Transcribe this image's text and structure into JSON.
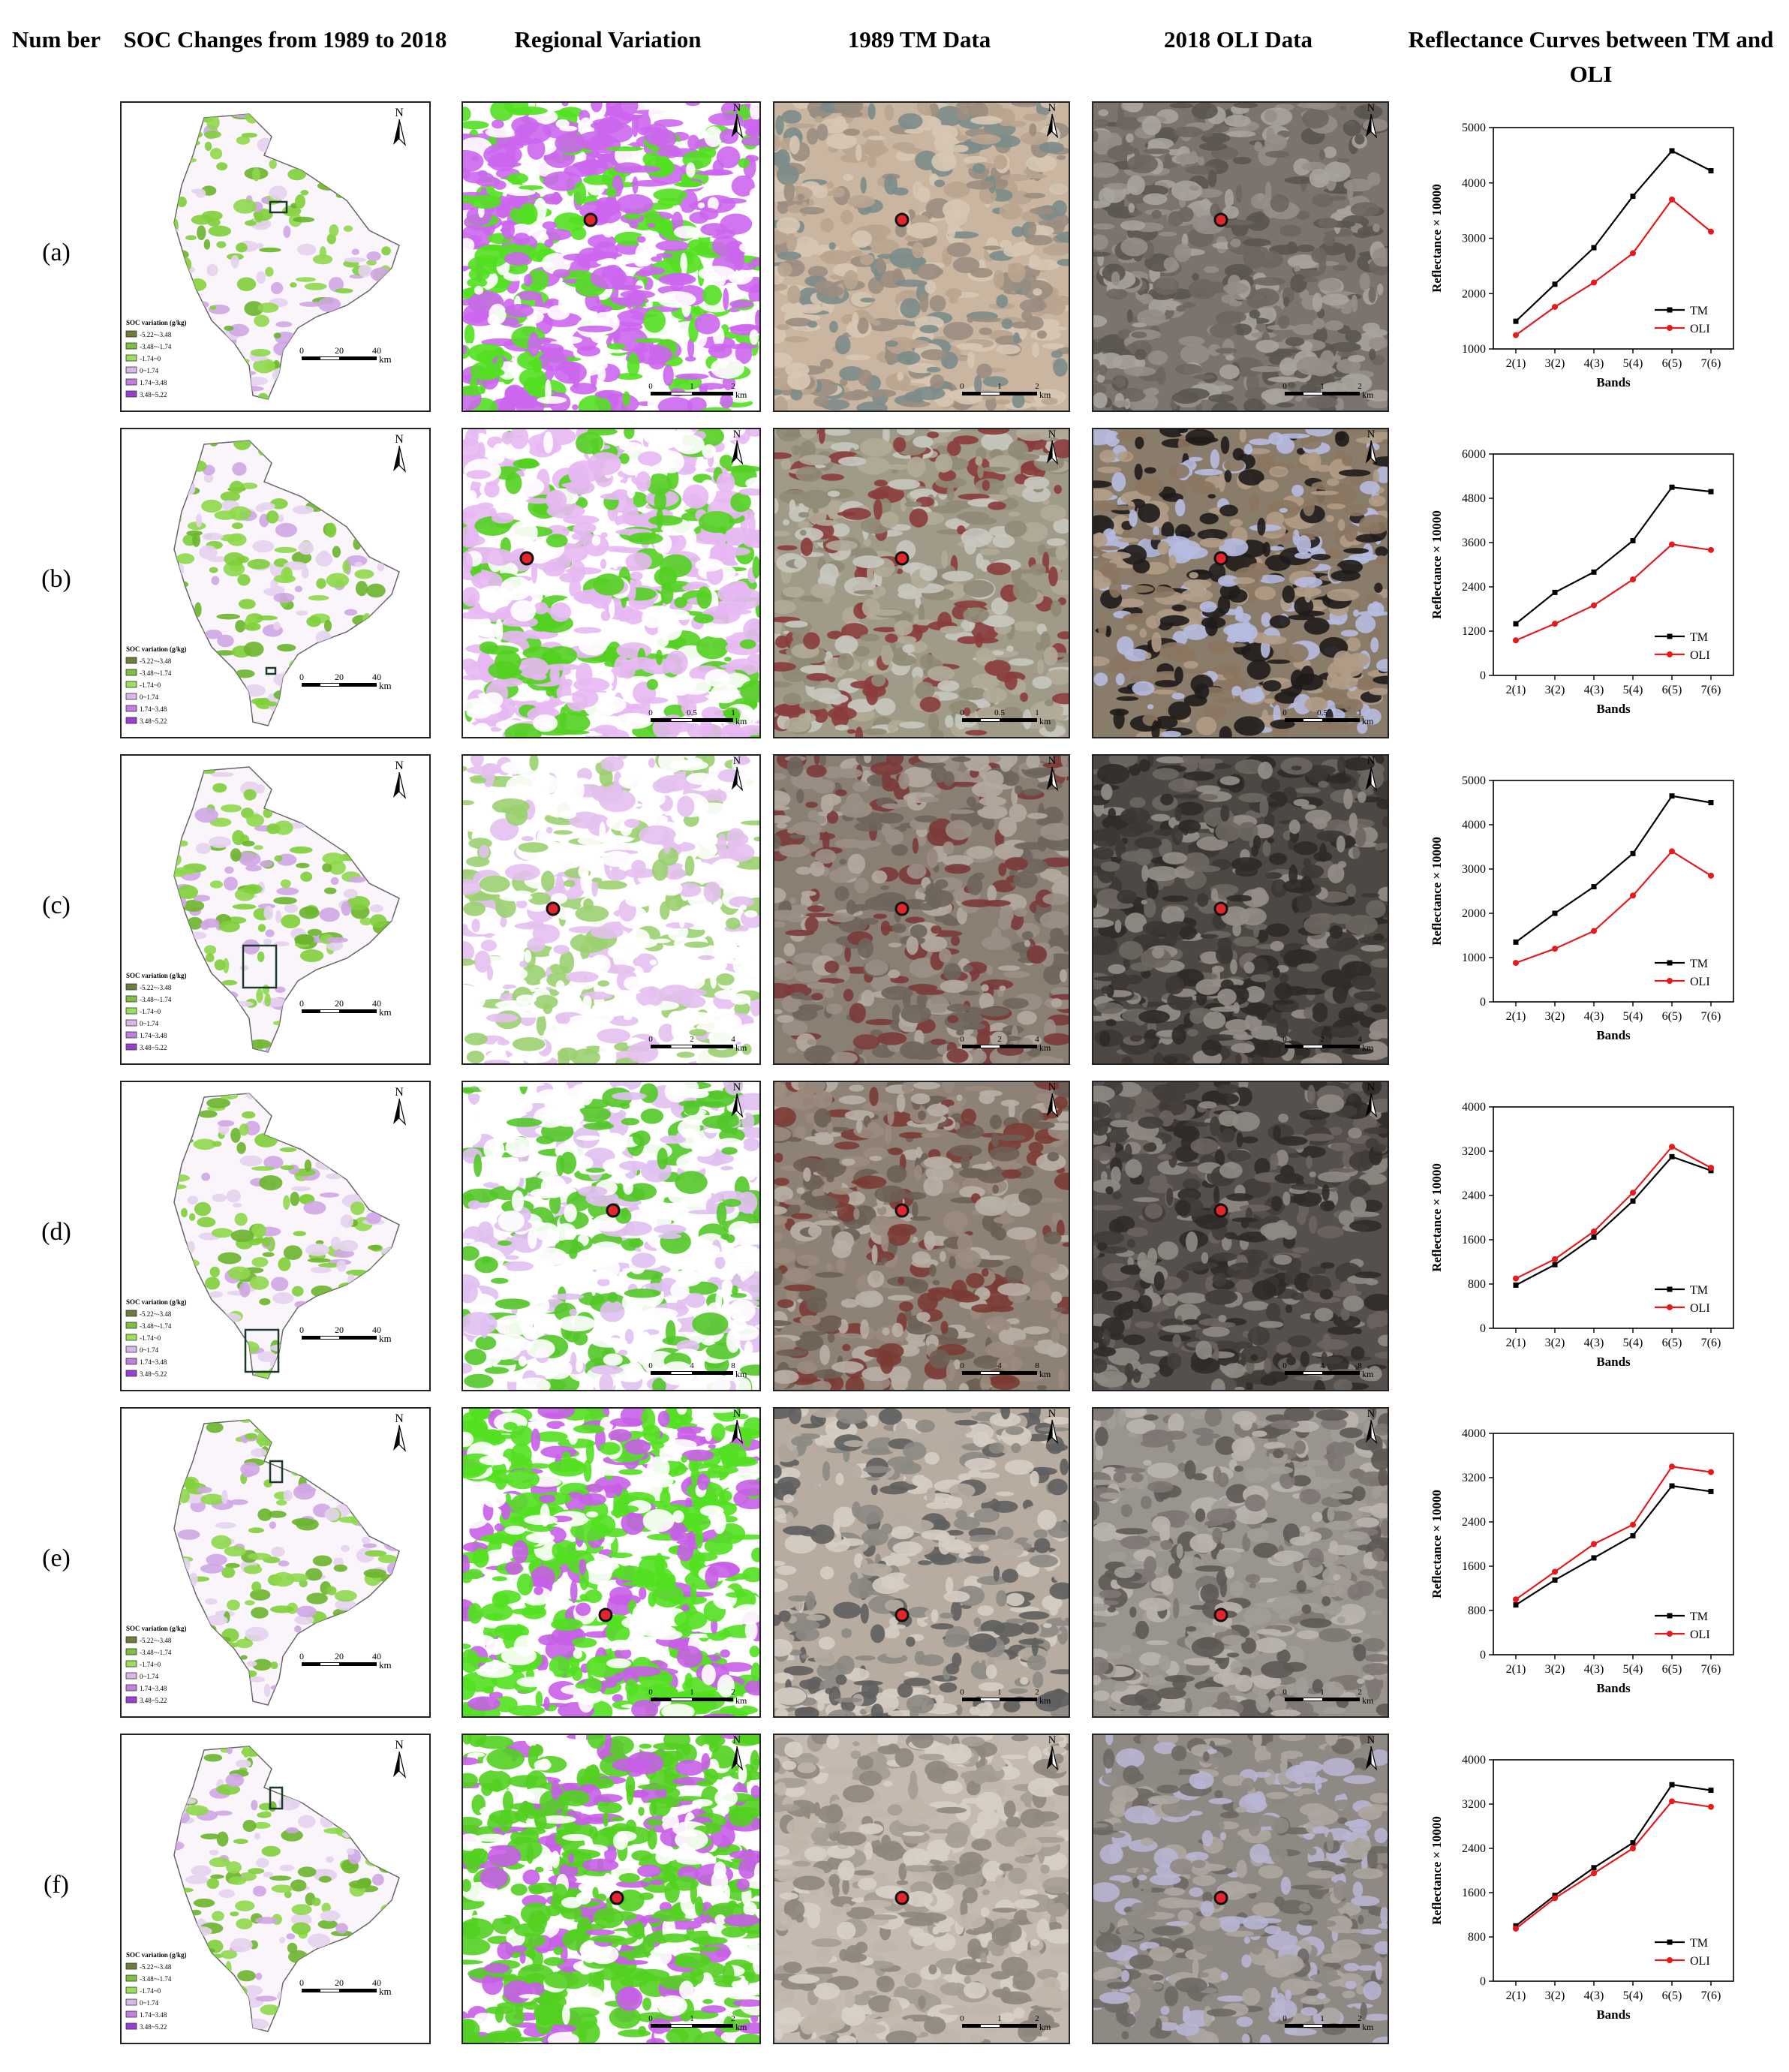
{
  "headers": {
    "number": "Num ber",
    "soc": "SOC Changes from 1989 to 2018",
    "regional": "Regional Variation",
    "tm": "1989 TM Data",
    "oli": "2018 OLI Data",
    "curves": "Reflectance Curves between TM and OLI"
  },
  "rows": [
    {
      "label": "(a)",
      "letter": "a"
    },
    {
      "label": "(b)",
      "letter": "b"
    },
    {
      "label": "(c)",
      "letter": "c"
    },
    {
      "label": "(d)",
      "letter": "d"
    },
    {
      "label": "(e)",
      "letter": "e"
    },
    {
      "label": "(f)",
      "letter": "f"
    }
  ],
  "map_common": {
    "north_label": "N",
    "km_label": "km",
    "scale_ticks": [
      "0",
      "20",
      "40"
    ],
    "legend_title_a": "SOC variation (g/kg)",
    "legend_title": "SOC variation (g/kg)",
    "legend_items": [
      "-5.22~-3.48",
      "-3.48~-1.74",
      "-1.74~0",
      "0~1.74",
      "1.74~3.48",
      "3.48~5.22"
    ],
    "legend_colors": [
      "#6a7f3a",
      "#7fbf3f",
      "#9be05a",
      "#d8b8e8",
      "#c27ee0",
      "#9b3fd0"
    ]
  },
  "chart_data": [
    {
      "type": "line",
      "row": "a",
      "categories": [
        "2(1)",
        "3(2)",
        "4(3)",
        "5(4)",
        "6(5)",
        "7(6)"
      ],
      "series": [
        {
          "name": "TM",
          "color": "#000000",
          "values": [
            1500,
            2170,
            2830,
            3760,
            4580,
            4220
          ]
        },
        {
          "name": "OLI",
          "color": "#e41a1c",
          "values": [
            1250,
            1760,
            2200,
            2730,
            3700,
            3120
          ]
        }
      ],
      "xlabel": "Bands",
      "ylabel": "Reflectance × 10000",
      "ylim": [
        1000,
        5000
      ],
      "yticks": [
        "1000",
        "2000",
        "3000",
        "4000",
        "5000"
      ],
      "legend": "bottom-right"
    },
    {
      "type": "line",
      "row": "b",
      "categories": [
        "2(1)",
        "3(2)",
        "4(3)",
        "5(4)",
        "6(5)",
        "7(6)"
      ],
      "series": [
        {
          "name": "TM",
          "color": "#000000",
          "values": [
            1400,
            2250,
            2800,
            3650,
            5100,
            4980
          ]
        },
        {
          "name": "OLI",
          "color": "#e41a1c",
          "values": [
            950,
            1400,
            1900,
            2600,
            3550,
            3400
          ]
        }
      ],
      "xlabel": "Bands",
      "ylabel": "Reflectance × 10000",
      "ylim": [
        0,
        6000
      ],
      "yticks": [
        "0",
        "1200",
        "2400",
        "3600",
        "4800",
        "6000"
      ],
      "legend": "bottom-right"
    },
    {
      "type": "line",
      "row": "c",
      "categories": [
        "2(1)",
        "3(2)",
        "4(3)",
        "5(4)",
        "6(5)",
        "7(6)"
      ],
      "series": [
        {
          "name": "TM",
          "color": "#000000",
          "values": [
            1350,
            2000,
            2600,
            3350,
            4650,
            4500
          ]
        },
        {
          "name": "OLI",
          "color": "#e41a1c",
          "values": [
            880,
            1200,
            1600,
            2400,
            3400,
            2850
          ]
        }
      ],
      "xlabel": "Bands",
      "ylabel": "Reflectance × 10000",
      "ylim": [
        0,
        5000
      ],
      "yticks": [
        "0",
        "1000",
        "2000",
        "3000",
        "4000",
        "5000"
      ],
      "legend": "bottom-right"
    },
    {
      "type": "line",
      "row": "d",
      "categories": [
        "2(1)",
        "3(2)",
        "4(3)",
        "5(4)",
        "6(5)",
        "7(6)"
      ],
      "series": [
        {
          "name": "TM",
          "color": "#000000",
          "values": [
            780,
            1150,
            1650,
            2300,
            3100,
            2850
          ]
        },
        {
          "name": "OLI",
          "color": "#e41a1c",
          "values": [
            900,
            1250,
            1750,
            2450,
            3280,
            2900
          ]
        }
      ],
      "xlabel": "Bands",
      "ylabel": "Reflectance × 10000",
      "ylim": [
        0,
        4000
      ],
      "yticks": [
        "0",
        "800",
        "1600",
        "2400",
        "3200",
        "4000"
      ],
      "legend": "bottom-right"
    },
    {
      "type": "line",
      "row": "e",
      "categories": [
        "2(1)",
        "3(2)",
        "4(3)",
        "5(4)",
        "6(5)",
        "7(6)"
      ],
      "series": [
        {
          "name": "TM",
          "color": "#000000",
          "values": [
            900,
            1350,
            1750,
            2150,
            3050,
            2950
          ]
        },
        {
          "name": "OLI",
          "color": "#e41a1c",
          "values": [
            1000,
            1500,
            2000,
            2350,
            3400,
            3300
          ]
        }
      ],
      "xlabel": "Bands",
      "ylabel": "Reflectance × 10000",
      "ylim": [
        0,
        4000
      ],
      "yticks": [
        "0",
        "800",
        "1600",
        "2400",
        "3200",
        "4000"
      ],
      "legend": "bottom-right"
    },
    {
      "type": "line",
      "row": "f",
      "categories": [
        "2(1)",
        "3(2)",
        "4(3)",
        "5(4)",
        "6(5)",
        "7(6)"
      ],
      "series": [
        {
          "name": "TM",
          "color": "#000000",
          "values": [
            1000,
            1550,
            2050,
            2500,
            3550,
            3450
          ]
        },
        {
          "name": "OLI",
          "color": "#e41a1c",
          "values": [
            950,
            1500,
            1950,
            2400,
            3250,
            3150
          ]
        }
      ],
      "xlabel": "Bands",
      "ylabel": "Reflectance × 10000",
      "ylim": [
        0,
        4000
      ],
      "yticks": [
        "0",
        "800",
        "1600",
        "2400",
        "3200",
        "4000"
      ],
      "legend": "bottom-right"
    }
  ],
  "panel_scales": {
    "regional": [
      [
        "0",
        "1",
        "2"
      ],
      [
        "0",
        "0.5",
        "1"
      ],
      [
        "0",
        "2",
        "4"
      ],
      [
        "0",
        "4",
        "8"
      ],
      [
        "0",
        "1",
        "2"
      ],
      [
        "0",
        "1",
        "2"
      ]
    ],
    "tm": [
      [
        "0",
        "1",
        "2"
      ],
      [
        "0",
        "0.5",
        "1"
      ],
      [
        "0",
        "2",
        "4"
      ],
      [
        "0",
        "4",
        "8"
      ],
      [
        "0",
        "1",
        "2"
      ],
      [
        "0",
        "1",
        "2"
      ]
    ]
  }
}
